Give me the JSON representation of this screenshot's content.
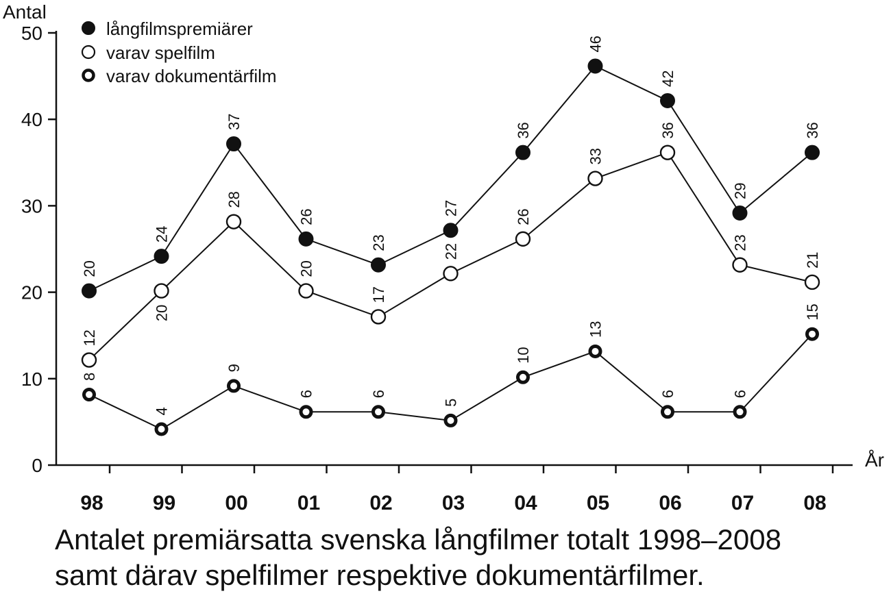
{
  "chart_data": {
    "type": "line",
    "ylabel": "Antal",
    "xlabel": "År",
    "ylim": [
      0,
      50
    ],
    "yticks": [
      0,
      10,
      20,
      30,
      40,
      50
    ],
    "categories": [
      "98",
      "99",
      "00",
      "01",
      "02",
      "03",
      "04",
      "05",
      "06",
      "07",
      "08"
    ],
    "legend_position": "top-left",
    "grid": false,
    "series": [
      {
        "name": "långfilmspremiärer",
        "marker": "filled-circle",
        "values": [
          20,
          24,
          37,
          26,
          23,
          27,
          36,
          46,
          42,
          29,
          36
        ]
      },
      {
        "name": "varav spelfilm",
        "marker": "open-circle",
        "values": [
          12,
          20,
          28,
          20,
          17,
          22,
          26,
          33,
          36,
          23,
          21
        ]
      },
      {
        "name": "varav dokumentärfilm",
        "marker": "thick-ring",
        "values": [
          8,
          4,
          9,
          6,
          6,
          5,
          10,
          13,
          6,
          6,
          15
        ]
      }
    ]
  },
  "caption": {
    "line1": "Antalet premiärsatta svenska långfilmer totalt 1998–2008",
    "line2": "samt därav spelfilmer respektive dokumentärfilmer."
  }
}
